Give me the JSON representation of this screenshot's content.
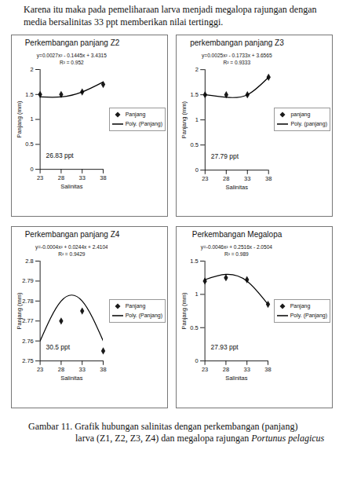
{
  "text": "Karena itu maka pada pemeliharaan larva menjadi megalopa rajungan dengan media bersalinitas 33 ppt memberikan nilai tertinggi.",
  "chart_data": [
    {
      "type": "scatter",
      "title": "Perkembangan panjang Z2",
      "equation": "y=0.0027x² - 0.1445x + 3.4315",
      "r_squared": "R² = 0.952",
      "annotation": "26.83 ppt",
      "x_label": "Salinitas",
      "y_label": "Panjang (mm)",
      "x": [
        23,
        28,
        33,
        38
      ],
      "series": [
        {
          "name": "Panjang",
          "type": "scatter",
          "marker": "diamond",
          "color": "#1a1a1a",
          "values": [
            1.5,
            1.5,
            1.55,
            1.7
          ]
        },
        {
          "name": "Poly. (Panjang)",
          "type": "line",
          "line_style": "solid",
          "color": "#000000",
          "values": [
            1.45,
            1.45,
            1.55,
            1.75
          ]
        }
      ],
      "xlim": [
        23,
        38
      ],
      "xticks": [
        23,
        28,
        33,
        38
      ],
      "ylim": [
        0,
        2
      ],
      "yticks": [
        0,
        0.5,
        1,
        1.5,
        2
      ],
      "legend": "right",
      "grid": false
    },
    {
      "type": "scatter",
      "title": "perkembangan panjang Z3",
      "equation": "y=0.0025x² - 0.1733x + 3.6565",
      "r_squared": "R² = 0.9333",
      "annotation": "27.79 ppt",
      "x_label": "Salinitas",
      "y_label": "Panjang (mm)",
      "x": [
        23,
        28,
        33,
        38
      ],
      "series": [
        {
          "name": "panjang",
          "type": "scatter",
          "marker": "diamond",
          "color": "#1a1a1a",
          "values": [
            1.5,
            1.5,
            1.5,
            1.85
          ]
        },
        {
          "name": "Poly. (panjang)",
          "type": "line",
          "line_style": "solid",
          "color": "#000000",
          "values": [
            1.5,
            1.45,
            1.5,
            1.85
          ]
        }
      ],
      "xlim": [
        23,
        38
      ],
      "xticks": [
        23,
        28,
        33,
        38
      ],
      "ylim": [
        0,
        2
      ],
      "yticks": [
        0,
        0.5,
        1,
        1.5,
        2
      ],
      "legend": "right",
      "grid": false
    },
    {
      "type": "scatter",
      "title": "Perkembangan panjang Z4",
      "equation": "y=-0.0004x² + 0.0244x + 2.4104",
      "r_squared": "R² = 0.9429",
      "annotation": "30.5 ppt",
      "x_label": "Salinitas",
      "y_label": "Panjang (mm)",
      "x": [
        23,
        28,
        33,
        38
      ],
      "series": [
        {
          "name": "Panjang",
          "type": "scatter",
          "marker": "diamond",
          "color": "#1a1a1a",
          "values": [
            null,
            2.77,
            2.775,
            2.755
          ]
        },
        {
          "name": "Poly. (Panjang)",
          "type": "line",
          "line_style": "solid",
          "color": "#000000",
          "values": [
            2.76,
            2.78,
            2.78,
            2.76
          ]
        }
      ],
      "xlim": [
        23,
        38
      ],
      "xticks": [
        23,
        28,
        33,
        38
      ],
      "ylim": [
        2.75,
        2.8
      ],
      "yticks": [
        2.75,
        2.76,
        2.77,
        2.78,
        2.79,
        2.8
      ],
      "legend": "right",
      "grid": false
    },
    {
      "type": "scatter",
      "title": "Perkembangan Megalopa",
      "equation": "y=-0.0046x² + 0.2516x - 2.0504",
      "r_squared": "R² = 0.989",
      "annotation": "27.93 ppt",
      "x_label": "Salinitas",
      "y_label": "Panjang (mm)",
      "x": [
        23,
        28,
        33,
        38
      ],
      "series": [
        {
          "name": "Panjang",
          "type": "scatter",
          "marker": "diamond",
          "color": "#1a1a1a",
          "values": [
            1.2,
            1.25,
            1.22,
            0.85
          ]
        },
        {
          "name": "Poly. (Panjang)",
          "type": "line",
          "line_style": "solid",
          "color": "#000000",
          "values": [
            1.22,
            1.3,
            1.2,
            0.85
          ]
        }
      ],
      "xlim": [
        23,
        38
      ],
      "xticks": [
        23,
        28,
        33,
        38
      ],
      "ylim": [
        0,
        1.5
      ],
      "yticks": [
        0,
        0.5,
        1,
        1.5
      ],
      "legend": "right",
      "grid": false
    }
  ],
  "caption": "Gambar 11. Grafik hubungan salinitas dengan perkembangan (panjang)",
  "caption_line2": "larva (Z1, Z2, Z3, Z4) dan megalopa rajungan",
  "caption_species": "Portunus pelagicus"
}
